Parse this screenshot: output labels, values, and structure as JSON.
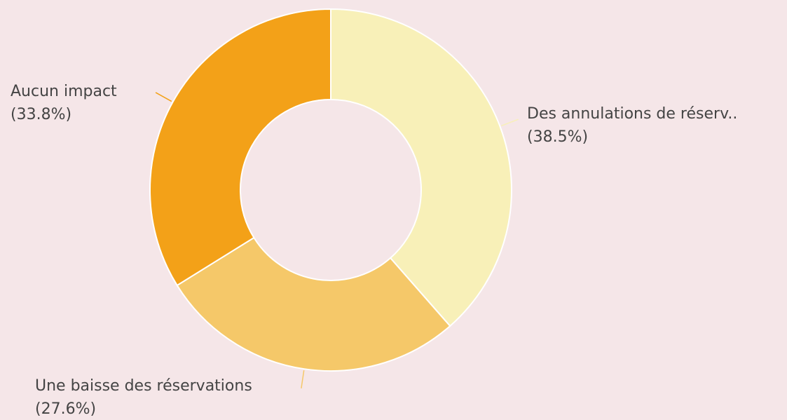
{
  "chart_data": {
    "type": "donut",
    "categories": [
      "Des annulations de réserv..",
      "Une baisse des réservations",
      "Aucun impact"
    ],
    "values": [
      38.5,
      27.6,
      33.8
    ],
    "value_labels": [
      "(38.5%)",
      "(27.6%)",
      "(33.8%)"
    ],
    "colors": [
      "#F8F0B8",
      "#F5C869",
      "#F3A118"
    ]
  }
}
